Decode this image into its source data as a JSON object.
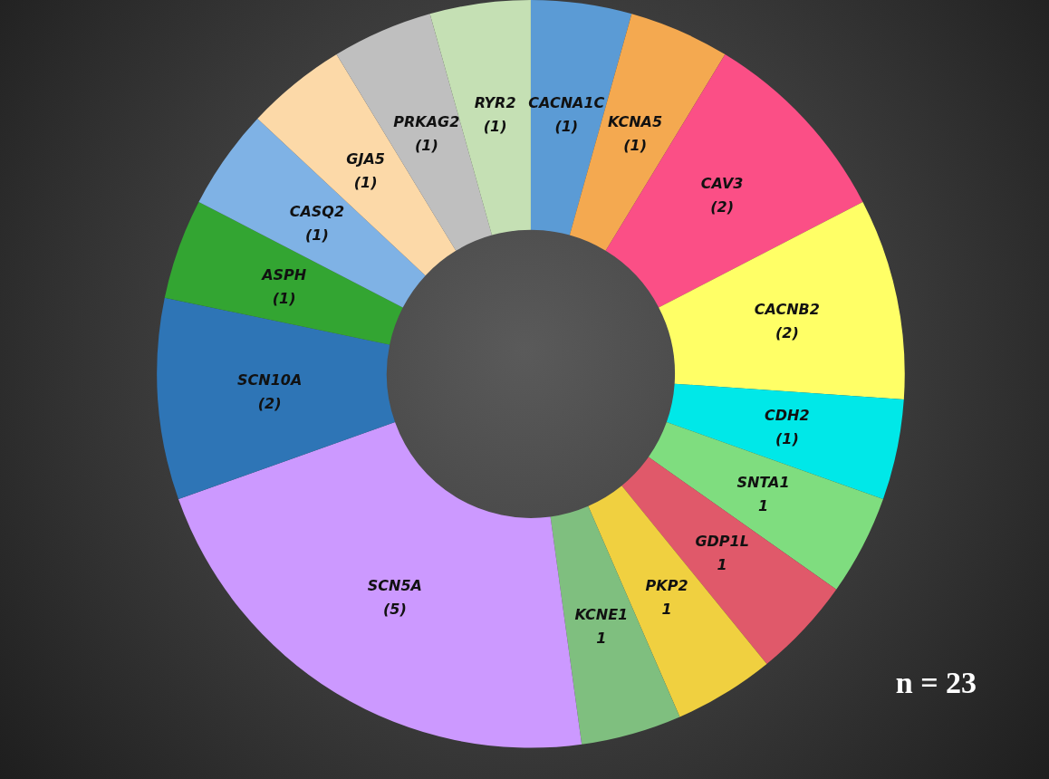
{
  "chart_data": {
    "type": "donut",
    "categories": [
      "CACNA1C",
      "KCNA5",
      "CAV3",
      "CACNB2",
      "CDH2",
      "SNTA1",
      "GDP1L",
      "PKP2",
      "KCNE1",
      "SCN5A",
      "SCN10A",
      "ASPH",
      "CASQ2",
      "GJA5",
      "PRKAG2",
      "RYR2"
    ],
    "values": [
      1,
      1,
      2,
      2,
      1,
      1,
      1,
      1,
      1,
      5,
      2,
      1,
      1,
      1,
      1,
      1
    ],
    "value_labels": [
      "(1)",
      "(1)",
      "(2)",
      "(2)",
      "(1)",
      "1",
      "1",
      "1",
      "1",
      "(5)",
      "(2)",
      "(1)",
      "(1)",
      "(1)",
      "(1)",
      "(1)"
    ],
    "colors": [
      "#5b9bd5",
      "#f4a950",
      "#fb4f86",
      "#ffff66",
      "#00e8e8",
      "#7fdd7f",
      "#e0596a",
      "#f0d040",
      "#7fbf7f",
      "#cc99ff",
      "#2e75b6",
      "#33a532",
      "#7fb2e5",
      "#fcd9a8",
      "#bfbfbf",
      "#c5e0b4"
    ],
    "annotations": [
      "n = 23"
    ],
    "legend": false
  }
}
